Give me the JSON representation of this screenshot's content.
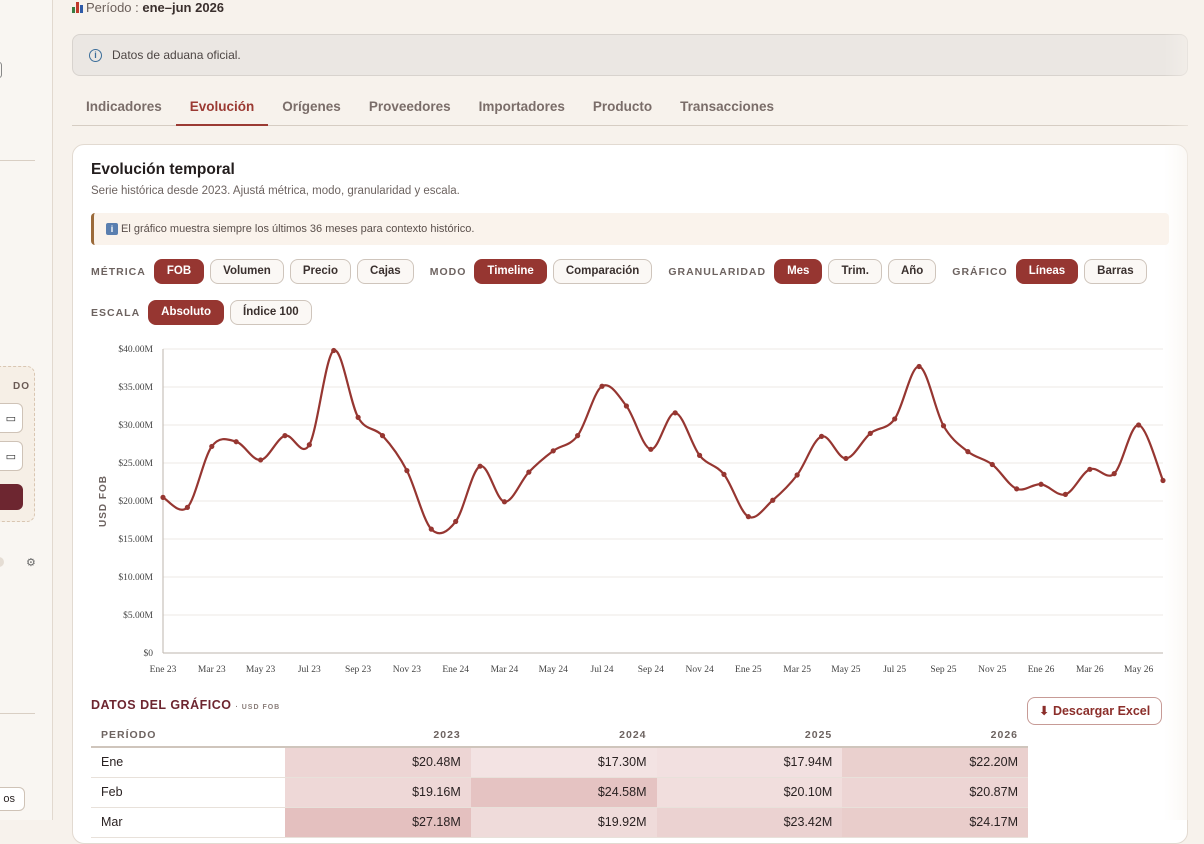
{
  "header": {
    "period_prefix": "Período : ",
    "period_value": "ene–jun 2026"
  },
  "notice": {
    "text": "Datos de aduana oficial."
  },
  "tabs": [
    {
      "label": "Indicadores",
      "active": false
    },
    {
      "label": "Evolución",
      "active": true
    },
    {
      "label": "Orígenes",
      "active": false
    },
    {
      "label": "Proveedores",
      "active": false
    },
    {
      "label": "Importadores",
      "active": false
    },
    {
      "label": "Producto",
      "active": false
    },
    {
      "label": "Transacciones",
      "active": false
    }
  ],
  "card": {
    "title": "Evolución temporal",
    "subtitle": "Serie histórica desde 2023. Ajustá métrica, modo, granularidad y escala.",
    "hint": "El gráfico muestra siempre los últimos 36 meses para contexto histórico."
  },
  "controls": {
    "metric_label": "MÉTRICA",
    "metric_options": [
      "FOB",
      "Volumen",
      "Precio",
      "Cajas"
    ],
    "metric_selected": "FOB",
    "mode_label": "MODO",
    "mode_options": [
      "Timeline",
      "Comparación"
    ],
    "mode_selected": "Timeline",
    "granularity_label": "GRANULARIDAD",
    "granularity_options": [
      "Mes",
      "Trim.",
      "Año"
    ],
    "granularity_selected": "Mes",
    "chart_label": "GRÁFICO",
    "chart_options": [
      "Líneas",
      "Barras"
    ],
    "chart_selected": "Líneas",
    "scale_label": "ESCALA",
    "scale_options": [
      "Absoluto",
      "Índice 100"
    ],
    "scale_selected": "Absoluto"
  },
  "sidebar": {
    "card_label": "DO",
    "bottom_button": "os"
  },
  "chart_data": {
    "type": "line",
    "ylabel": "USD FOB",
    "ylim": [
      0,
      40
    ],
    "y_unit": "M",
    "y_ticks": [
      "$0",
      "$5.00M",
      "$10.00M",
      "$15.00M",
      "$20.00M",
      "$25.00M",
      "$30.00M",
      "$35.00M",
      "$40.00M"
    ],
    "x_tick_labels": [
      "Ene 23",
      "Mar 23",
      "May 23",
      "Jul 23",
      "Sep 23",
      "Nov 23",
      "Ene 24",
      "Mar 24",
      "May 24",
      "Jul 24",
      "Sep 24",
      "Nov 24",
      "Ene 25",
      "Mar 25",
      "May 25",
      "Jul 25",
      "Sep 25",
      "Nov 25",
      "Ene 26",
      "Mar 26",
      "May 26"
    ],
    "x": [
      "Ene 23",
      "Feb 23",
      "Mar 23",
      "Abr 23",
      "May 23",
      "Jun 23",
      "Jul 23",
      "Ago 23",
      "Sep 23",
      "Oct 23",
      "Nov 23",
      "Dic 23",
      "Ene 24",
      "Feb 24",
      "Mar 24",
      "Abr 24",
      "May 24",
      "Jun 24",
      "Jul 24",
      "Ago 24",
      "Sep 24",
      "Oct 24",
      "Nov 24",
      "Dic 24",
      "Ene 25",
      "Feb 25",
      "Mar 25",
      "Abr 25",
      "May 25",
      "Jun 25",
      "Jul 25",
      "Ago 25",
      "Sep 25",
      "Oct 25",
      "Nov 25",
      "Dic 25",
      "Ene 26",
      "Feb 26",
      "Mar 26",
      "Abr 26",
      "May 26",
      "Jun 26"
    ],
    "series": [
      {
        "color": "#963631",
        "values": [
          20.48,
          19.16,
          27.18,
          27.8,
          25.4,
          28.6,
          27.4,
          39.8,
          31.0,
          28.6,
          24.0,
          16.3,
          17.3,
          24.58,
          19.9,
          23.8,
          26.6,
          28.6,
          35.1,
          32.5,
          26.8,
          31.6,
          26.0,
          23.5,
          17.94,
          20.1,
          23.42,
          28.5,
          25.6,
          28.9,
          30.8,
          37.7,
          29.9,
          26.5,
          24.8,
          21.6,
          22.2,
          20.87,
          24.17,
          23.6,
          30.0,
          22.7
        ]
      }
    ],
    "grid": true
  },
  "data_table": {
    "title": "DATOS DEL GRÁFICO",
    "unit": "· USD FOB",
    "download_label": "⬇ Descargar Excel",
    "columns": [
      "PERÍODO",
      "2023",
      "2024",
      "2025",
      "2026"
    ],
    "rows": [
      [
        "Ene",
        "$20.48M",
        "$17.30M",
        "$17.94M",
        "$22.20M"
      ],
      [
        "Feb",
        "$19.16M",
        "$24.58M",
        "$20.10M",
        "$20.87M"
      ],
      [
        "Mar",
        "$27.18M",
        "$19.92M",
        "$23.42M",
        "$24.17M"
      ]
    ],
    "heat": [
      [
        0.45,
        0.2,
        0.25,
        0.55
      ],
      [
        0.4,
        0.75,
        0.3,
        0.45
      ],
      [
        0.8,
        0.35,
        0.5,
        0.6
      ]
    ]
  }
}
